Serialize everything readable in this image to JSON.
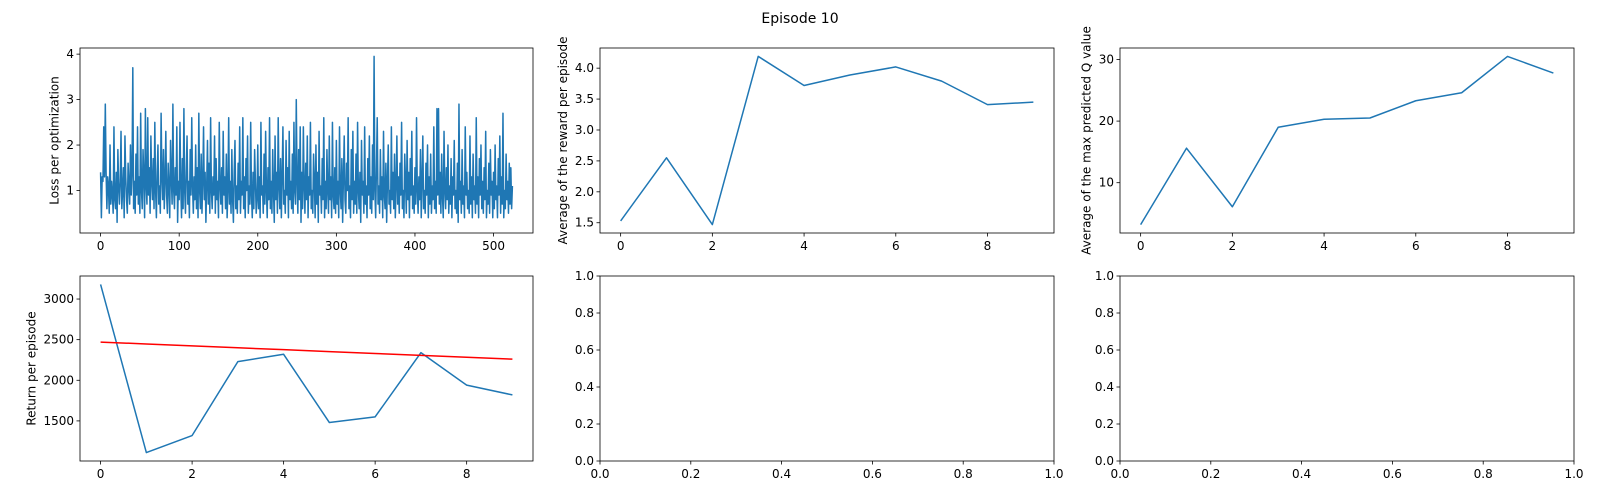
{
  "title": "Episode 10",
  "chart_data": [
    {
      "type": "line",
      "ylabel": "Loss per optimization",
      "xlim": [
        -26.2,
        550.2
      ],
      "xticks": [
        0,
        100,
        200,
        300,
        400,
        500
      ],
      "ylim": [
        0.065,
        4.135
      ],
      "yticks": [
        1,
        2,
        3,
        4
      ],
      "series": [
        {
          "color": "#1f77b4",
          "values": [
            1.4,
            0.4,
            1.3,
            1.2,
            2.4,
            1.3,
            2.9,
            1.4,
            0.6,
            1.3,
            1.1,
            0.5,
            2.0,
            0.7,
            1.2,
            0.9,
            0.5,
            2.4,
            0.8,
            0.6,
            1.4,
            0.3,
            1.9,
            1.1,
            0.7,
            1.2,
            2.3,
            0.6,
            1.0,
            1.5,
            0.4,
            2.2,
            1.3,
            0.8,
            0.5,
            1.6,
            1.1,
            0.7,
            2.0,
            0.9,
            1.4,
            3.7,
            0.6,
            1.2,
            0.5,
            1.8,
            0.9,
            2.4,
            0.7,
            1.3,
            0.5,
            2.7,
            1.0,
            0.6,
            1.9,
            1.3,
            0.4,
            2.8,
            1.1,
            0.7,
            2.6,
            0.9,
            1.5,
            0.5,
            2.2,
            1.2,
            0.8,
            1.7,
            0.6,
            2.5,
            1.0,
            0.4,
            1.4,
            2.0,
            0.7,
            1.1,
            0.5,
            2.7,
            1.3,
            0.8,
            1.9,
            0.6,
            1.2,
            2.3,
            0.9,
            0.5,
            1.6,
            1.1,
            0.4,
            2.1,
            1.3,
            0.7,
            2.9,
            1.0,
            0.6,
            1.5,
            0.9,
            2.4,
            0.3,
            1.2,
            0.8,
            2.5,
            1.1,
            0.4,
            1.7,
            0.6,
            2.8,
            1.0,
            0.5,
            1.4,
            2.2,
            0.7,
            1.2,
            0.4,
            1.9,
            0.9,
            2.6,
            1.1,
            0.5,
            1.3,
            0.8,
            2.0,
            0.6,
            1.5,
            0.4,
            2.7,
            1.0,
            0.6,
            1.8,
            0.5,
            1.2,
            2.4,
            0.8,
            1.4,
            0.3,
            1.1,
            2.1,
            0.7,
            1.6,
            0.5,
            2.6,
            1.0,
            0.6,
            1.3,
            0.9,
            2.2,
            0.5,
            1.7,
            0.8,
            1.2,
            0.4,
            2.5,
            1.1,
            0.7,
            1.5,
            0.5,
            2.3,
            0.9,
            1.3,
            0.6,
            1.8,
            0.4,
            1.0,
            2.6,
            0.7,
            1.2,
            0.5,
            1.9,
            0.8,
            0.3,
            1.4,
            2.1,
            0.6,
            1.1,
            0.5,
            1.6,
            0.8,
            2.4,
            0.5,
            1.2,
            0.9,
            2.6,
            0.6,
            1.3,
            0.4,
            1.7,
            1.0,
            2.2,
            0.5,
            1.1,
            0.7,
            2.5,
            0.9,
            0.4,
            1.4,
            0.6,
            1.9,
            1.2,
            0.5,
            0.8,
            2.0,
            0.6,
            1.3,
            0.4,
            2.5,
            0.9,
            1.1,
            0.5,
            1.8,
            0.7,
            2.3,
            1.0,
            0.4,
            1.5,
            0.8,
            2.6,
            0.6,
            1.2,
            0.5,
            1.9,
            1.0,
            0.3,
            2.2,
            0.8,
            1.4,
            0.5,
            2.6,
            1.1,
            0.6,
            1.7,
            0.4,
            1.3,
            2.4,
            0.7,
            1.0,
            0.5,
            2.1,
            0.9,
            1.5,
            0.4,
            2.3,
            0.8,
            1.2,
            0.6,
            1.8,
            0.5,
            2.5,
            1.0,
            0.7,
            3.0,
            1.2,
            0.5,
            1.9,
            0.8,
            2.4,
            0.3,
            1.4,
            0.6,
            2.4,
            1.1,
            0.5,
            1.6,
            0.8,
            2.2,
            0.4,
            1.3,
            0.9,
            2.5,
            0.6,
            1.0,
            0.5,
            1.8,
            1.2,
            0.4,
            2.0,
            0.7,
            1.4,
            0.3,
            2.3,
            0.9,
            1.1,
            0.5,
            1.7,
            0.8,
            2.6,
            0.4,
            1.2,
            0.6,
            1.9,
            1.0,
            0.5,
            2.2,
            0.8,
            1.3,
            0.4,
            2.5,
            0.9,
            0.6,
            1.5,
            0.5,
            2.1,
            0.7,
            1.2,
            0.4,
            2.4,
            1.0,
            0.6,
            1.7,
            0.3,
            1.3,
            2.2,
            0.8,
            0.5,
            1.6,
            1.0,
            2.6,
            0.6,
            1.1,
            0.4,
            1.9,
            0.8,
            2.3,
            0.5,
            1.2,
            0.7,
            1.8,
            0.5,
            2.5,
            1.0,
            0.6,
            1.4,
            0.3,
            2.1,
            0.9,
            1.2,
            0.5,
            2.4,
            0.7,
            1.1,
            0.4,
            1.7,
            0.9,
            2.2,
            0.6,
            1.3,
            0.5,
            2.0,
            0.8,
            3.95,
            1.0,
            0.4,
            1.5,
            2.6,
            0.7,
            1.1,
            0.5,
            1.9,
            0.8,
            1.3,
            0.4,
            2.3,
            0.9,
            0.6,
            1.6,
            0.3,
            1.2,
            2.0,
            0.7,
            1.0,
            0.5,
            2.4,
            0.8,
            1.4,
            0.6,
            1.8,
            0.4,
            1.1,
            2.2,
            0.7,
            1.3,
            0.5,
            1.6,
            0.9,
            2.5,
            0.6,
            1.0,
            0.4,
            1.8,
            1.2,
            0.5,
            2.1,
            0.8,
            1.4,
            0.4,
            1.7,
            0.9,
            2.3,
            0.6,
            1.1,
            0.5,
            1.5,
            0.7,
            2.6,
            1.0,
            0.5,
            1.3,
            0.8,
            1.9,
            0.4,
            1.2,
            2.2,
            0.6,
            1.0,
            0.5,
            1.6,
            0.9,
            2.0,
            0.4,
            1.3,
            0.7,
            1.8,
            0.5,
            1.1,
            0.8,
            2.4,
            0.6,
            1.2,
            0.5,
            2.8,
            0.9,
            2.8,
            0.7,
            1.4,
            0.5,
            1.8,
            0.9,
            0.4,
            2.3,
            1.0,
            0.6,
            1.5,
            0.8,
            2.0,
            0.5,
            1.1,
            0.7,
            1.7,
            0.4,
            1.3,
            0.9,
            2.1,
            0.6,
            1.0,
            0.5,
            1.6,
            0.3,
            2.9,
            0.8,
            1.2,
            0.5,
            1.9,
            0.7,
            1.1,
            0.4,
            2.4,
            0.9,
            1.4,
            0.6,
            1.0,
            0.5,
            2.2,
            0.7,
            1.3,
            0.4,
            1.8,
            0.8,
            1.1,
            0.5,
            2.6,
            0.7,
            1.3,
            0.4,
            1.7,
            0.9,
            2.0,
            0.6,
            1.2,
            0.5,
            1.5,
            0.8,
            2.3,
            0.4,
            1.0,
            0.7,
            1.6,
            0.5,
            1.9,
            0.9,
            1.2,
            0.4,
            1.4,
            0.6,
            2.0,
            0.8,
            1.1,
            0.4,
            1.7,
            0.9,
            2.2,
            0.5,
            1.3,
            0.7,
            2.7,
            0.4,
            1.0,
            0.6,
            1.8,
            0.8,
            1.2,
            0.5,
            1.6,
            0.7,
            1.5,
            0.6,
            1.1
          ]
        }
      ]
    },
    {
      "type": "line",
      "ylabel": "Average of the reward per episode",
      "xlim": [
        -0.45,
        9.45
      ],
      "xticks": [
        0,
        2,
        4,
        6,
        8
      ],
      "ylim": [
        1.334,
        4.326
      ],
      "yticks": [
        1.5,
        {
          "value": 2,
          "label": "2.0"
        },
        2.5,
        {
          "value": 3,
          "label": "3.0"
        },
        3.5,
        {
          "value": 4,
          "label": "4.0"
        }
      ],
      "series": [
        {
          "color": "#1f77b4",
          "values": [
            1.53,
            2.55,
            1.47,
            4.19,
            3.72,
            3.89,
            4.02,
            3.79,
            3.41,
            3.45
          ]
        }
      ]
    },
    {
      "type": "line",
      "ylabel": "Average of the max predicted Q value",
      "xlim": [
        -0.45,
        9.45
      ],
      "xticks": [
        0,
        2,
        4,
        6,
        8
      ],
      "ylim": [
        1.835,
        31.865
      ],
      "yticks": [
        10,
        20,
        30
      ],
      "series": [
        {
          "color": "#1f77b4",
          "values": [
            3.2,
            15.6,
            6.1,
            19.0,
            20.3,
            20.5,
            23.3,
            24.6,
            30.5,
            27.8
          ]
        }
      ]
    },
    {
      "type": "line",
      "ylabel": "Return per episode",
      "xlim": [
        -0.45,
        9.45
      ],
      "xticks": [
        0,
        2,
        4,
        6,
        8
      ],
      "ylim": [
        1006.5,
        3283.5
      ],
      "yticks": [
        1500,
        2000,
        2500,
        3000
      ],
      "series": [
        {
          "color": "#1f77b4",
          "values": [
            3180,
            1110,
            1320,
            2230,
            2320,
            1480,
            1550,
            2340,
            1940,
            1820
          ]
        },
        {
          "color": "#ff0000",
          "values": [
            2470,
            2447,
            2423,
            2400,
            2377,
            2353,
            2330,
            2307,
            2283,
            2260
          ]
        }
      ]
    },
    {
      "type": "line",
      "xlim": [
        0,
        1
      ],
      "ylim": [
        0,
        1
      ],
      "xticks": [
        {
          "value": 0,
          "label": "0.0"
        },
        0.2,
        0.4,
        0.6,
        0.8,
        {
          "value": 1,
          "label": "1.0"
        }
      ],
      "yticks": [
        {
          "value": 0,
          "label": "0.0"
        },
        0.2,
        0.4,
        0.6,
        0.8,
        {
          "value": 1,
          "label": "1.0"
        }
      ]
    },
    {
      "type": "line",
      "xlim": [
        0,
        1
      ],
      "ylim": [
        0,
        1
      ],
      "xticks": [
        {
          "value": 0,
          "label": "0.0"
        },
        0.2,
        0.4,
        0.6,
        0.8,
        {
          "value": 1,
          "label": "1.0"
        }
      ],
      "yticks": [
        {
          "value": 0,
          "label": "0.0"
        },
        0.2,
        0.4,
        0.6,
        0.8,
        {
          "value": 1,
          "label": "1.0"
        }
      ]
    }
  ]
}
